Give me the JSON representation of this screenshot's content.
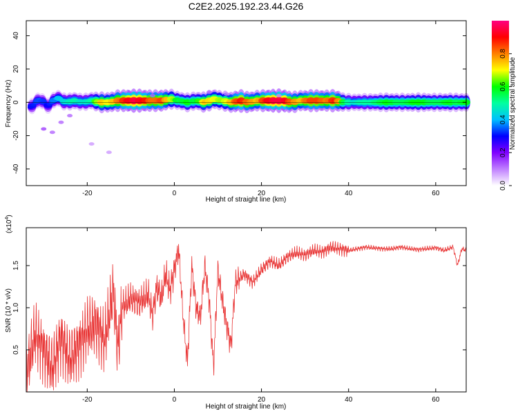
{
  "title": "C2E2.2025.192.23.44.G26",
  "chart_data": [
    {
      "type": "heatmap",
      "xlabel": "Height of straight line (km)",
      "ylabel": "Frequency (Hz)",
      "xlim": [
        -34,
        67
      ],
      "ylim": [
        -50,
        49
      ],
      "xticks": [
        -20,
        0,
        20,
        40,
        60
      ],
      "yticks": [
        -40,
        -20,
        0,
        20,
        40
      ],
      "colorbar": {
        "label": "Normalized spectral amplitude",
        "range": [
          0,
          1
        ],
        "ticks": [
          "0.0",
          "0.2",
          "0.4",
          "0.6",
          "0.8"
        ],
        "tick_values": [
          0,
          0.2,
          0.4,
          0.6,
          0.8
        ],
        "colors": [
          "#ffffff",
          "#c080ff",
          "#8000ff",
          "#0000ff",
          "#00c0ff",
          "#00ffa0",
          "#00ff00",
          "#ffff00",
          "#ff8000",
          "#ff0000",
          "#ff0080"
        ]
      },
      "ridge": {
        "x": [
          -33,
          -31,
          -29,
          -27,
          -25,
          -23,
          -21,
          -19,
          -17,
          -15,
          -13,
          -11,
          -9,
          -7,
          -5,
          -3,
          -1,
          1,
          3,
          5,
          7,
          9,
          11,
          13,
          15,
          17,
          19,
          21,
          23,
          25,
          27,
          29,
          31,
          33,
          35,
          37,
          39,
          41,
          43,
          45,
          47,
          49,
          51,
          53,
          55,
          57,
          59,
          61,
          63,
          65,
          67
        ],
        "y": [
          -3,
          2,
          -2,
          3,
          0,
          1,
          0,
          1,
          0,
          0,
          1,
          1,
          1,
          1,
          1,
          1,
          2,
          1,
          0,
          1,
          0,
          2,
          1,
          0,
          1,
          0,
          1,
          1,
          1,
          1,
          0,
          1,
          1,
          1,
          1,
          1,
          0,
          0,
          0,
          0,
          0,
          0,
          0,
          0,
          0,
          0,
          0,
          0,
          0,
          0,
          0
        ],
        "amplitude": [
          0.3,
          0.35,
          0.3,
          0.4,
          0.45,
          0.5,
          0.45,
          0.5,
          0.75,
          0.7,
          0.8,
          0.9,
          0.95,
          0.9,
          0.8,
          0.85,
          0.7,
          0.55,
          0.6,
          0.55,
          0.75,
          0.7,
          0.65,
          0.75,
          0.9,
          0.8,
          0.75,
          0.9,
          0.95,
          0.95,
          0.8,
          0.75,
          0.85,
          0.85,
          0.8,
          0.9,
          0.55,
          0.45,
          0.5,
          0.5,
          0.55,
          0.6,
          0.55,
          0.55,
          0.6,
          0.6,
          0.55,
          0.55,
          0.6,
          0.55,
          0.6
        ]
      }
    },
    {
      "type": "line",
      "xlabel": "Height of straight line (km)",
      "ylabel": "SNR (10 * v/v)",
      "multiplier_label": "(x10",
      "multiplier_exp": "4",
      "multiplier_close": ")",
      "xlim": [
        -34,
        67
      ],
      "ylim": [
        0,
        1.95
      ],
      "xticks": [
        -20,
        0,
        20,
        40,
        60
      ],
      "yticks": [
        0.5,
        1.0,
        1.5
      ],
      "ytick_labels": [
        "0.5",
        "1.0",
        "1.5"
      ],
      "series": [
        {
          "color": "#e83030",
          "x": [
            -34,
            -32,
            -30,
            -28,
            -26,
            -24,
            -22,
            -20,
            -18,
            -16,
            -14,
            -13,
            -12,
            -10,
            -8,
            -6,
            -5,
            -4,
            -3,
            -2,
            -1,
            0,
            1,
            2,
            3,
            4,
            5,
            6,
            7,
            8,
            9,
            10,
            11,
            12,
            13,
            14,
            16,
            18,
            20,
            22,
            24,
            26,
            28,
            30,
            32,
            34,
            36,
            38,
            40,
            42,
            44,
            46,
            48,
            50,
            52,
            54,
            56,
            58,
            60,
            62,
            64,
            65,
            66,
            67
          ],
          "y": [
            0.2,
            0.7,
            0.5,
            0.3,
            0.65,
            0.4,
            0.55,
            0.75,
            0.8,
            0.6,
            1.2,
            0.5,
            1.0,
            1.1,
            1.05,
            1.15,
            0.9,
            1.25,
            1.1,
            1.4,
            1.2,
            1.45,
            1.7,
            0.9,
            0.35,
            1.5,
            1.0,
            0.9,
            1.5,
            1.1,
            0.3,
            1.45,
            1.1,
            0.8,
            0.55,
            1.3,
            1.4,
            1.3,
            1.45,
            1.55,
            1.5,
            1.6,
            1.65,
            1.62,
            1.68,
            1.66,
            1.72,
            1.7,
            1.68,
            1.7,
            1.72,
            1.71,
            1.7,
            1.7,
            1.72,
            1.7,
            1.69,
            1.7,
            1.71,
            1.68,
            1.72,
            1.5,
            1.7,
            1.68
          ]
        }
      ]
    }
  ]
}
